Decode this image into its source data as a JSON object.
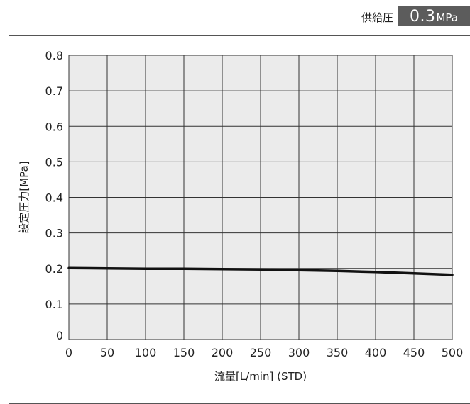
{
  "header": {
    "supply_label": "供給圧",
    "supply_value": "0.3",
    "supply_unit": "MPa"
  },
  "chart_data": {
    "type": "line",
    "xlabel": "流量[L/min] (STD)",
    "ylabel": "設定圧力[MPa]",
    "xlim": [
      0,
      500
    ],
    "ylim": [
      0,
      0.8
    ],
    "x_ticks": [
      "0",
      "50",
      "100",
      "150",
      "200",
      "250",
      "300",
      "350",
      "400",
      "450",
      "500"
    ],
    "y_ticks": [
      "0",
      "0.1",
      "0.2",
      "0.3",
      "0.4",
      "0.5",
      "0.6",
      "0.7",
      "0.8"
    ],
    "grid": true,
    "series": [
      {
        "x": [
          0,
          50,
          100,
          150,
          200,
          250,
          300,
          350,
          400,
          450,
          500
        ],
        "y": [
          0.201,
          0.2,
          0.199,
          0.199,
          0.198,
          0.197,
          0.195,
          0.193,
          0.19,
          0.186,
          0.182
        ]
      }
    ],
    "colors": {
      "plot_background": "#ebebeb",
      "grid": "#333333",
      "line": "#111111",
      "badge": "#5c5c5c"
    }
  }
}
